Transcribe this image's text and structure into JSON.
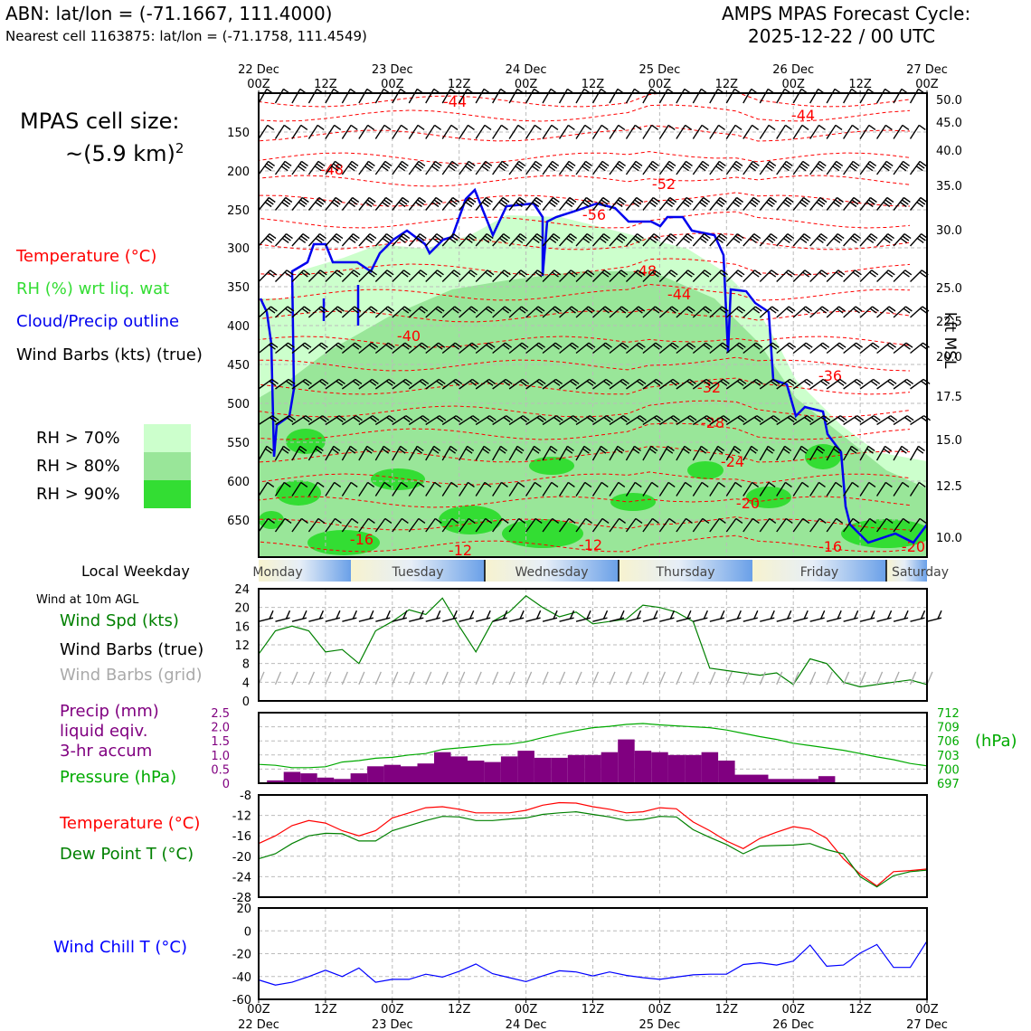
{
  "header": {
    "location": "ABN: lat/lon = (-71.1667, 111.4000)",
    "nearest": "Nearest cell 1163875: lat/lon = (-71.1758, 111.4549)",
    "cycle_title": "AMPS MPAS Forecast Cycle:",
    "cycle_value": "2025-12-22 / 00 UTC"
  },
  "cell_size": {
    "label": "MPAS cell size:",
    "value": "~(5.9 km)",
    "exponent": "2"
  },
  "legend": {
    "temperature": "Temperature (°C)",
    "rh": "RH (%) wrt liq. wat",
    "cloud": "Cloud/Precip outline",
    "wind": "Wind Barbs (kts) (true)",
    "rh70": "RH > 70%",
    "rh80": "RH > 80%",
    "rh90": "RH > 90%"
  },
  "colors": {
    "temperature": "#ff0000",
    "rh_label": "#33dd33",
    "cloud": "#0000ee",
    "rh70": "#ccffcc",
    "rh80": "#99e699",
    "rh90": "#33dd33",
    "precip": "#800080",
    "pressure": "#00aa00",
    "dewpoint": "#008000",
    "windchill": "#0000ff",
    "wind_grid": "#aaaaaa"
  },
  "time_axis": {
    "top_days": [
      "22 Dec",
      "23 Dec",
      "24 Dec",
      "25 Dec",
      "26 Dec",
      "27 Dec"
    ],
    "top_labels": [
      "00Z",
      "12Z",
      "00Z",
      "12Z",
      "00Z",
      "12Z",
      "00Z",
      "12Z",
      "00Z",
      "12Z",
      "00Z"
    ],
    "bottom_labels": [
      "00Z",
      "12Z",
      "00Z",
      "12Z",
      "00Z",
      "12Z",
      "00Z",
      "12Z",
      "00Z",
      "12Z",
      "00Z"
    ],
    "bottom_days": [
      "22 Dec",
      "23 Dec",
      "24 Dec",
      "25 Dec",
      "26 Dec",
      "27 Dec"
    ]
  },
  "weekday": {
    "label": "Local Weekday",
    "days": [
      "Monday",
      "Tuesday",
      "Wednesday",
      "Thursday",
      "Friday",
      "Saturday"
    ]
  },
  "chart_data": [
    {
      "type": "time-height cross-section",
      "pressure_ticks": [
        "150",
        "200",
        "250",
        "300",
        "350",
        "400",
        "450",
        "500",
        "550",
        "600",
        "650"
      ],
      "kft_ticks": [
        "50.0",
        "45.0",
        "40.0",
        "35.0",
        "30.0",
        "25.0",
        "22.5",
        "20.0",
        "17.5",
        "15.0",
        "12.5",
        "10.0"
      ],
      "right_label": "kft MSL",
      "isotherm_labels": [
        "-44",
        "-44",
        "-48",
        "-52",
        "-56",
        "-48",
        "-44",
        "-40",
        "-36",
        "-32",
        "-28",
        "-24",
        "-20",
        "-16",
        "-12",
        "-12",
        "-16",
        "-20"
      ]
    },
    {
      "type": "line",
      "title": "Wind at 10m AGL",
      "legend": [
        "Wind Spd (kts)",
        "Wind Barbs (true)",
        "Wind Barbs (grid)"
      ],
      "ylim": [
        0,
        24
      ],
      "yticks": [
        "24",
        "20",
        "16",
        "12",
        "8",
        "4",
        "0"
      ],
      "x_hours": [
        0,
        3,
        6,
        9,
        12,
        15,
        18,
        21,
        24,
        27,
        30,
        33,
        36,
        39,
        42,
        45,
        48,
        51,
        54,
        57,
        60,
        63,
        66,
        69,
        72,
        75,
        78,
        81,
        84,
        87,
        90,
        93,
        96,
        99,
        102,
        105,
        108,
        111,
        114,
        117,
        120
      ],
      "series": [
        {
          "name": "Wind Spd (kts)",
          "values": [
            10,
            15,
            16,
            15,
            10.5,
            11,
            8,
            15,
            17,
            19.5,
            18.5,
            22,
            16,
            10.5,
            17,
            19,
            22.5,
            20,
            18,
            19,
            16.5,
            17,
            17.5,
            20.5,
            20,
            19,
            17,
            7,
            6.5,
            6,
            5.5,
            6,
            3.5,
            9,
            8,
            4,
            3,
            3.5,
            4,
            4.5,
            3.5
          ]
        }
      ]
    },
    {
      "type": "bar+line",
      "legend": [
        "Precip (mm)",
        "liquid eqiv.",
        "3-hr accum",
        "Pressure (hPa)"
      ],
      "ylim_left": [
        0,
        2.5
      ],
      "yticks_left": [
        "2.5",
        "2.0",
        "1.5",
        "1.0",
        "0.5",
        "0"
      ],
      "yticks_right": [
        "712",
        "709",
        "706",
        "703",
        "700",
        "697"
      ],
      "right_unit": "(hPa)",
      "x_hours": [
        0,
        3,
        6,
        9,
        12,
        15,
        18,
        21,
        24,
        27,
        30,
        33,
        36,
        39,
        42,
        45,
        48,
        51,
        54,
        57,
        60,
        63,
        66,
        69,
        72,
        75,
        78,
        81,
        84,
        87,
        90,
        93,
        96,
        99,
        102,
        105,
        108,
        111,
        114,
        117,
        120
      ],
      "precip": [
        0,
        0.1,
        0.4,
        0.35,
        0.2,
        0.15,
        0.35,
        0.6,
        0.65,
        0.6,
        0.7,
        1.1,
        0.95,
        0.8,
        0.75,
        0.95,
        1.15,
        0.9,
        0.9,
        1.0,
        1.0,
        1.1,
        1.55,
        1.15,
        1.1,
        1.0,
        1.0,
        1.1,
        0.8,
        0.3,
        0.3,
        0.15,
        0.15,
        0.15,
        0.25,
        0,
        0,
        0,
        0,
        0,
        0
      ],
      "series": [
        {
          "name": "Pressure (hPa)",
          "values": [
            701,
            700.8,
            700.3,
            700.3,
            700.5,
            701.5,
            701.8,
            702.3,
            702.5,
            703,
            703.3,
            704.2,
            704.5,
            704.8,
            705.2,
            705.3,
            705.8,
            706.7,
            707.5,
            708.2,
            708.8,
            709.1,
            709.5,
            709.7,
            709.4,
            709.2,
            709,
            708.8,
            708.3,
            707.6,
            706.9,
            706.3,
            705.5,
            705,
            704.5,
            704,
            703.3,
            702.6,
            702,
            701.2,
            700.7
          ]
        }
      ]
    },
    {
      "type": "line",
      "legend": [
        "Temperature (°C)",
        "Dew Point T (°C)"
      ],
      "ylim": [
        -28,
        -8
      ],
      "yticks": [
        "-8",
        "-12",
        "-16",
        "-20",
        "-24",
        "-28"
      ],
      "x_hours": [
        0,
        3,
        6,
        9,
        12,
        15,
        18,
        21,
        24,
        27,
        30,
        33,
        36,
        39,
        42,
        45,
        48,
        51,
        54,
        57,
        60,
        63,
        66,
        69,
        72,
        75,
        78,
        81,
        84,
        87,
        90,
        93,
        96,
        99,
        102,
        105,
        108,
        111,
        114,
        117,
        120
      ],
      "series": [
        {
          "name": "Temperature (°C)",
          "values": [
            -17.5,
            -16,
            -14,
            -13,
            -13.5,
            -15,
            -16,
            -15,
            -12.5,
            -11.5,
            -10.5,
            -10.3,
            -10.8,
            -11.5,
            -11.5,
            -11.5,
            -11,
            -10,
            -9.5,
            -9.6,
            -10.3,
            -10.8,
            -11.5,
            -11.3,
            -10.5,
            -10.7,
            -13.3,
            -15,
            -17,
            -18.5,
            -16.5,
            -15.3,
            -14.2,
            -14.7,
            -16.5,
            -20.5,
            -23.5,
            -25.8,
            -23,
            -22.8,
            -22.5
          ]
        },
        {
          "name": "Dew Point T (°C)",
          "values": [
            -20.5,
            -19.5,
            -17.5,
            -16,
            -15.5,
            -15.6,
            -17,
            -17,
            -15,
            -14,
            -13,
            -12.2,
            -12.3,
            -13,
            -13,
            -12.7,
            -12.5,
            -11.8,
            -11.5,
            -11.3,
            -11.8,
            -12.3,
            -13,
            -12.8,
            -12.2,
            -12.3,
            -14.8,
            -16.3,
            -17.7,
            -19.5,
            -18,
            -17.9,
            -17.8,
            -17.5,
            -18.7,
            -19.5,
            -24,
            -26,
            -23.8,
            -23,
            -22.7
          ]
        }
      ]
    },
    {
      "type": "line",
      "legend": [
        "Wind Chill T (°C)"
      ],
      "ylim": [
        -60,
        20
      ],
      "yticks": [
        "20",
        "0",
        "-20",
        "-40",
        "-60"
      ],
      "x_hours": [
        0,
        3,
        6,
        9,
        12,
        15,
        18,
        21,
        24,
        27,
        30,
        33,
        36,
        39,
        42,
        45,
        48,
        51,
        54,
        57,
        60,
        63,
        66,
        69,
        72,
        75,
        78,
        81,
        84,
        87,
        90,
        93,
        96,
        99,
        102,
        105,
        108,
        111,
        114,
        117,
        120
      ],
      "series": [
        {
          "name": "Wind Chill T (°C)",
          "values": [
            -43,
            -47.5,
            -45,
            -40,
            -34.5,
            -40,
            -32.5,
            -45,
            -42.5,
            -42.5,
            -38,
            -40.5,
            -35.5,
            -29,
            -37.5,
            -41,
            -44.5,
            -39.5,
            -35,
            -36,
            -39.5,
            -36,
            -39,
            -41,
            -42.5,
            -40.5,
            -38.5,
            -38,
            -38,
            -29.5,
            -28,
            -30,
            -26.5,
            -12.5,
            -31,
            -30,
            -19.5,
            -12,
            -32,
            -32,
            -9
          ]
        }
      ]
    }
  ]
}
